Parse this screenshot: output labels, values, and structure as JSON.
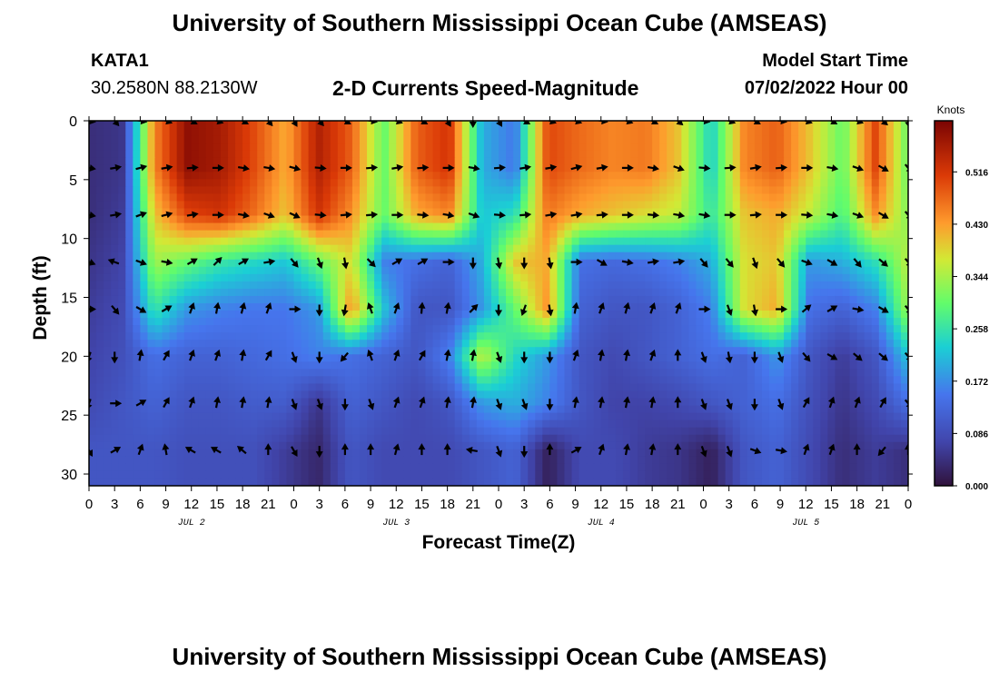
{
  "header": {
    "title": "University of Southern Mississippi Ocean Cube (AMSEAS)",
    "station": "KATA1",
    "coords": "30.2580N  88.2130W",
    "subtitle": "2-D Currents Speed-Magnitude",
    "start_label": "Model Start Time",
    "start_value": "07/02/2022 Hour 00"
  },
  "footer": {
    "title": "University of Southern Mississippi Ocean Cube (AMSEAS)"
  },
  "chart_data": {
    "type": "heatmap",
    "xlabel": "Forecast Time(Z)",
    "ylabel": "Depth (ft)",
    "x_range_hours": [
      0,
      96
    ],
    "y_range": [
      0,
      31
    ],
    "x_tick_labels": [
      "0",
      "3",
      "6",
      "9",
      "12",
      "15",
      "18",
      "21",
      "0",
      "3",
      "6",
      "9",
      "12",
      "15",
      "18",
      "21",
      "0",
      "3",
      "6",
      "9",
      "12",
      "15",
      "18",
      "21",
      "0",
      "3",
      "6",
      "9",
      "12",
      "15",
      "18",
      "21",
      "0"
    ],
    "y_ticks": [
      0,
      5,
      10,
      15,
      20,
      25,
      30
    ],
    "day_labels": [
      {
        "label": "JUL 2",
        "hour": 12
      },
      {
        "label": "JUL 3",
        "hour": 36
      },
      {
        "label": "JUL 4",
        "hour": 60
      },
      {
        "label": "JUL 5",
        "hour": 84
      }
    ],
    "colorbar": {
      "unit": "Knots",
      "range": [
        0.0,
        0.6
      ],
      "ticks": [
        "0.516",
        "0.430",
        "0.344",
        "0.258",
        "0.172",
        "0.086",
        "0.000"
      ],
      "tick_values": [
        0.516,
        0.43,
        0.344,
        0.258,
        0.172,
        0.086,
        0.0
      ]
    },
    "depths": [
      0,
      4,
      8,
      12,
      16,
      20,
      24,
      28
    ],
    "speed_knots": [
      [
        0.04,
        0.05,
        0.45,
        0.58,
        0.56,
        0.5,
        0.42,
        0.55,
        0.48,
        0.3,
        0.48,
        0.52,
        0.2,
        0.15,
        0.5,
        0.47,
        0.45,
        0.46,
        0.4,
        0.23,
        0.45,
        0.48,
        0.4,
        0.3,
        0.5,
        0.3
      ],
      [
        0.04,
        0.05,
        0.45,
        0.58,
        0.56,
        0.5,
        0.42,
        0.55,
        0.48,
        0.3,
        0.48,
        0.52,
        0.2,
        0.15,
        0.5,
        0.47,
        0.45,
        0.46,
        0.4,
        0.23,
        0.45,
        0.48,
        0.4,
        0.3,
        0.5,
        0.3
      ],
      [
        0.04,
        0.06,
        0.4,
        0.5,
        0.52,
        0.47,
        0.4,
        0.52,
        0.44,
        0.3,
        0.42,
        0.45,
        0.22,
        0.25,
        0.46,
        0.42,
        0.4,
        0.38,
        0.36,
        0.26,
        0.4,
        0.42,
        0.36,
        0.28,
        0.44,
        0.32
      ],
      [
        0.05,
        0.07,
        0.34,
        0.3,
        0.26,
        0.24,
        0.22,
        0.3,
        0.38,
        0.16,
        0.14,
        0.12,
        0.2,
        0.4,
        0.42,
        0.14,
        0.13,
        0.14,
        0.16,
        0.2,
        0.38,
        0.4,
        0.18,
        0.2,
        0.25,
        0.36
      ],
      [
        0.06,
        0.08,
        0.26,
        0.18,
        0.16,
        0.15,
        0.15,
        0.18,
        0.44,
        0.22,
        0.1,
        0.1,
        0.18,
        0.3,
        0.44,
        0.12,
        0.1,
        0.1,
        0.12,
        0.16,
        0.38,
        0.42,
        0.14,
        0.12,
        0.16,
        0.34
      ],
      [
        0.07,
        0.09,
        0.14,
        0.12,
        0.12,
        0.13,
        0.14,
        0.16,
        0.14,
        0.12,
        0.1,
        0.16,
        0.36,
        0.24,
        0.18,
        0.1,
        0.08,
        0.1,
        0.12,
        0.14,
        0.12,
        0.18,
        0.1,
        0.06,
        0.1,
        0.22
      ],
      [
        0.08,
        0.1,
        0.12,
        0.1,
        0.1,
        0.11,
        0.11,
        0.05,
        0.12,
        0.1,
        0.08,
        0.1,
        0.18,
        0.2,
        0.16,
        0.1,
        0.07,
        0.07,
        0.08,
        0.1,
        0.12,
        0.14,
        0.09,
        0.05,
        0.08,
        0.14
      ],
      [
        0.1,
        0.1,
        0.1,
        0.09,
        0.09,
        0.09,
        0.06,
        0.03,
        0.1,
        0.08,
        0.08,
        0.08,
        0.1,
        0.12,
        0.02,
        0.08,
        0.08,
        0.06,
        0.05,
        0.02,
        0.1,
        0.12,
        0.08,
        0.04,
        0.06,
        0.04
      ]
    ],
    "arrow_hours": [
      0,
      3,
      6,
      9,
      12,
      15,
      18,
      21,
      24,
      27,
      30,
      33,
      36,
      39,
      42,
      45,
      48,
      51,
      54,
      57,
      60,
      63,
      66,
      69,
      72,
      75,
      78,
      81,
      84,
      87,
      90,
      93,
      96
    ],
    "arrow_directions_deg": [
      [
        100,
        140,
        100,
        110,
        120,
        110,
        120,
        140,
        150,
        140,
        120,
        100,
        110,
        120,
        150,
        180,
        150,
        120,
        110,
        110,
        100,
        110,
        120,
        130,
        100,
        110,
        120,
        100,
        110,
        120,
        110,
        130,
        170
      ],
      [
        100,
        80,
        75,
        80,
        85,
        90,
        100,
        100,
        105,
        95,
        90,
        85,
        80,
        85,
        90,
        100,
        85,
        80,
        80,
        75,
        80,
        90,
        100,
        110,
        95,
        85,
        80,
        85,
        90,
        100,
        110,
        120,
        140
      ],
      [
        100,
        80,
        70,
        75,
        80,
        90,
        100,
        110,
        115,
        95,
        85,
        85,
        90,
        95,
        100,
        110,
        95,
        85,
        80,
        80,
        85,
        90,
        95,
        100,
        100,
        90,
        85,
        90,
        95,
        100,
        110,
        120,
        140
      ],
      [
        110,
        290,
        110,
        100,
        60,
        45,
        60,
        80,
        140,
        160,
        170,
        135,
        60,
        60,
        90,
        180,
        170,
        180,
        170,
        90,
        120,
        100,
        80,
        80,
        140,
        140,
        160,
        140,
        110,
        120,
        140,
        130,
        140
      ],
      [
        90,
        140,
        120,
        60,
        20,
        10,
        15,
        20,
        90,
        180,
        190,
        340,
        20,
        5,
        10,
        45,
        180,
        200,
        170,
        10,
        20,
        15,
        20,
        20,
        90,
        160,
        170,
        90,
        50,
        60,
        100,
        120,
        140
      ],
      [
        200,
        180,
        10,
        30,
        20,
        20,
        10,
        30,
        160,
        180,
        220,
        340,
        20,
        30,
        10,
        10,
        160,
        180,
        180,
        20,
        10,
        10,
        20,
        0,
        160,
        170,
        180,
        160,
        140,
        120,
        130,
        130,
        140
      ],
      [
        200,
        90,
        60,
        30,
        20,
        10,
        10,
        10,
        160,
        160,
        180,
        160,
        20,
        20,
        10,
        10,
        160,
        160,
        180,
        10,
        10,
        10,
        10,
        0,
        160,
        160,
        180,
        160,
        30,
        20,
        20,
        30,
        140
      ],
      [
        150,
        60,
        20,
        350,
        300,
        300,
        310,
        0,
        150,
        180,
        0,
        0,
        15,
        0,
        0,
        280,
        160,
        180,
        0,
        60,
        20,
        10,
        10,
        0,
        160,
        160,
        110,
        100,
        20,
        20,
        0,
        220,
        0
      ]
    ]
  }
}
